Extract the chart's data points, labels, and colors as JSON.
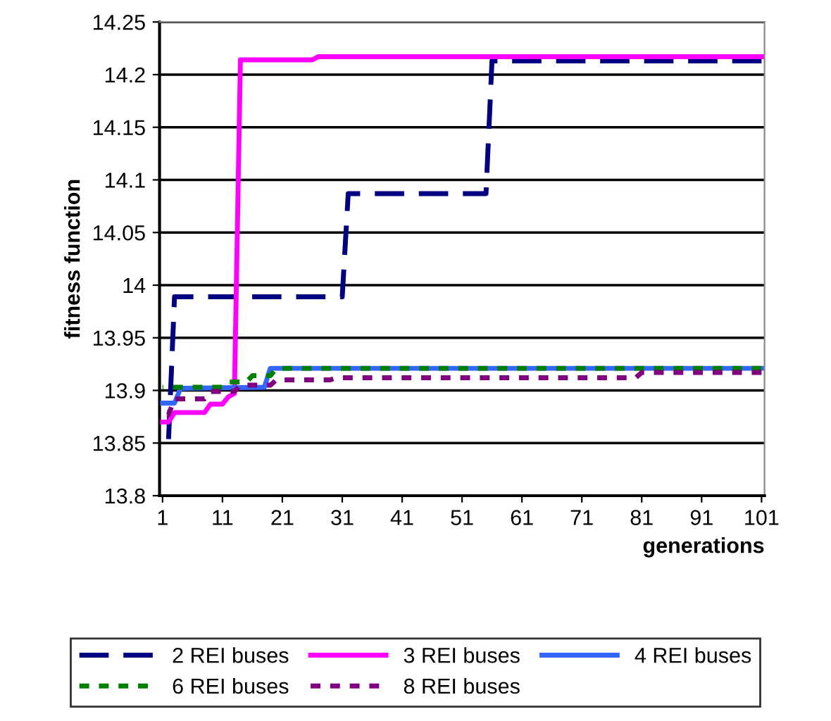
{
  "chart_data": {
    "type": "line",
    "xlabel": "generations",
    "ylabel": "fitness function",
    "xlim": [
      0.5,
      101.5
    ],
    "xticks": [
      1,
      11,
      21,
      31,
      41,
      51,
      61,
      71,
      81,
      91,
      101
    ],
    "ylim": [
      13.8,
      14.25
    ],
    "yticks": [
      13.8,
      13.85,
      13.9,
      13.95,
      14,
      14.05,
      14.1,
      14.15,
      14.2,
      14.25
    ],
    "grid": "y",
    "legend": "bottom",
    "marker": "none",
    "series": [
      {
        "name": "2 REI buses",
        "color": "#000080",
        "line_style": "dashed",
        "x": [
          1,
          2,
          3,
          31,
          32,
          55,
          56,
          101
        ],
        "values": [
          13.853,
          13.853,
          13.989,
          13.989,
          14.087,
          14.087,
          14.213,
          14.213
        ]
      },
      {
        "name": "3 REI buses",
        "color": "#ff00ff",
        "line_style": "solid",
        "x": [
          1,
          2,
          3,
          8,
          9,
          11,
          12,
          13,
          14,
          26,
          27,
          101
        ],
        "values": [
          13.87,
          13.87,
          13.879,
          13.879,
          13.887,
          13.887,
          13.894,
          13.897,
          14.214,
          14.214,
          14.217,
          14.217
        ]
      },
      {
        "name": "4 REI buses",
        "color": "#3366ff",
        "line_style": "solid",
        "x": [
          1,
          3,
          4,
          18,
          19,
          101
        ],
        "values": [
          13.888,
          13.888,
          13.902,
          13.903,
          13.921,
          13.921
        ]
      },
      {
        "name": "6 REI buses",
        "color": "#008000",
        "line_style": "dotted",
        "x": [
          1,
          11,
          12,
          15,
          16,
          19,
          20,
          101
        ],
        "values": [
          13.903,
          13.903,
          13.908,
          13.908,
          13.914,
          13.914,
          13.921,
          13.921
        ]
      },
      {
        "name": "8 REI buses",
        "color": "#800080",
        "line_style": "dotted",
        "x": [
          1,
          2,
          3,
          8,
          9,
          13,
          14,
          19,
          20,
          29,
          30,
          80,
          81,
          101
        ],
        "values": [
          13.877,
          13.877,
          13.892,
          13.892,
          13.899,
          13.899,
          13.905,
          13.905,
          13.91,
          13.91,
          13.912,
          13.912,
          13.917,
          13.917
        ]
      }
    ]
  }
}
